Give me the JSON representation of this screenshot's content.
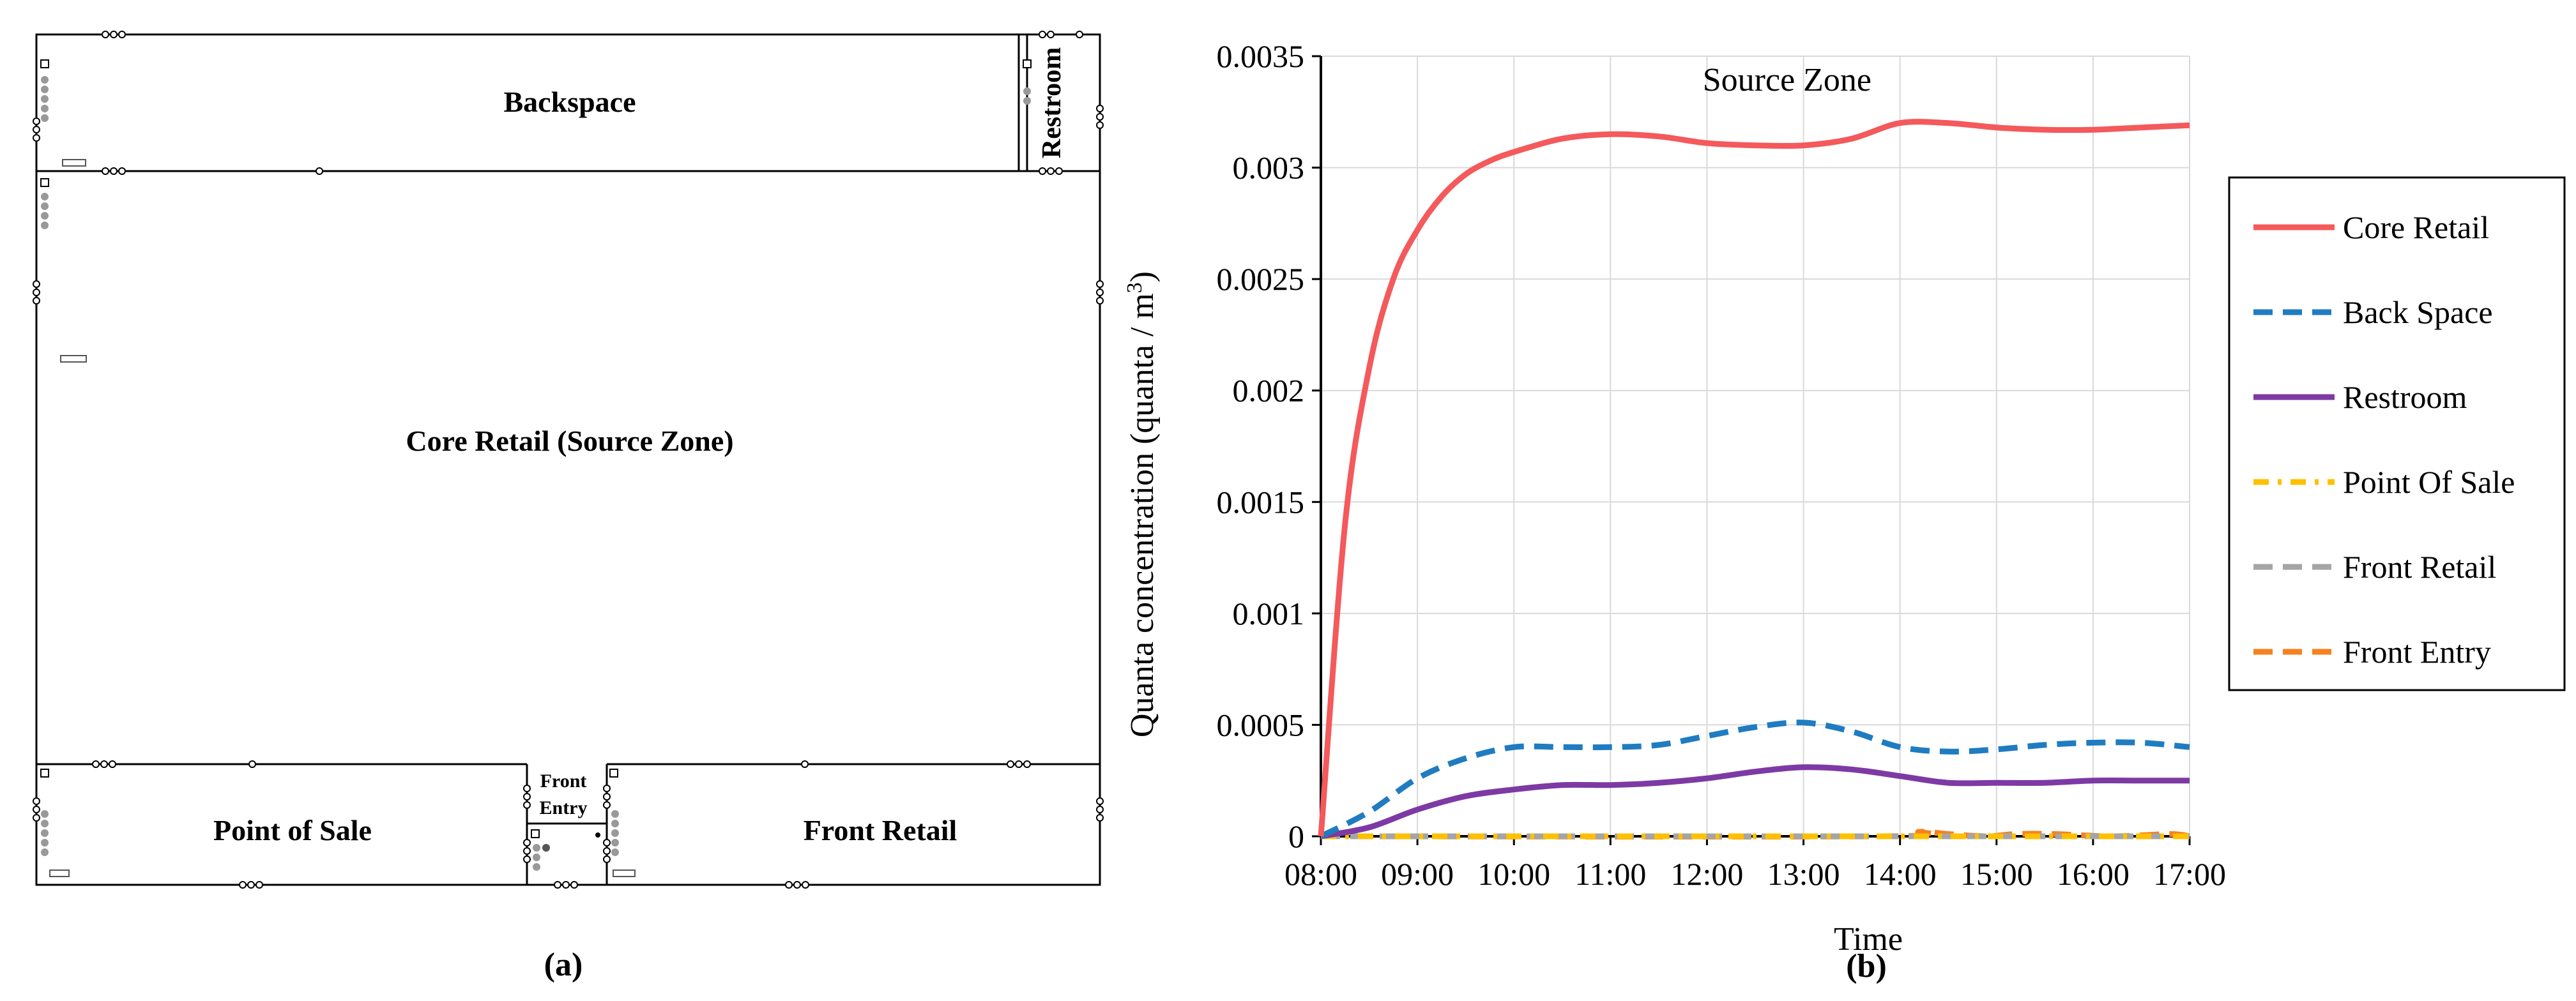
{
  "floor_plan": {
    "caption": "(a)",
    "rooms": {
      "backspace": "Backspace",
      "restroom": "Restroom",
      "core_retail": "Core Retail (Source Zone)",
      "point_of_sale": "Point of Sale",
      "front_entry_line1": "Front",
      "front_entry_line2": "Entry",
      "front_retail": "Front Retail"
    }
  },
  "chart_data": {
    "type": "line",
    "caption": "(b)",
    "annotation": "Source Zone",
    "xlabel": "Time",
    "ylabel_main": "Quanta concentration (quanta / m",
    "ylabel_sup": "3",
    "ylabel_tail": ")",
    "xlim": [
      8,
      17
    ],
    "ylim": [
      0,
      0.0035
    ],
    "x_tick_values": [
      8,
      9,
      10,
      11,
      12,
      13,
      14,
      15,
      16,
      17
    ],
    "x_tick_labels": [
      "08:00",
      "09:00",
      "10:00",
      "11:00",
      "12:00",
      "13:00",
      "14:00",
      "15:00",
      "16:00",
      "17:00"
    ],
    "y_tick_values": [
      0,
      0.0005,
      0.001,
      0.0015,
      0.002,
      0.0025,
      0.003,
      0.0035
    ],
    "y_tick_labels": [
      "0",
      "0.0005",
      "0.001",
      "0.0015",
      "0.002",
      "0.0025",
      "0.003",
      "0.0035"
    ],
    "grid": true,
    "legend_position": "right",
    "series": [
      {
        "name": "Core Retail",
        "color": "#f4595b",
        "style": "solid",
        "x": [
          8,
          8.25,
          8.5,
          8.75,
          9,
          9.25,
          9.5,
          9.75,
          10,
          10.5,
          11,
          11.5,
          12,
          12.5,
          13,
          13.5,
          14,
          14.5,
          15,
          15.5,
          16,
          16.5,
          17
        ],
        "y": [
          0,
          0.0014,
          0.0021,
          0.0025,
          0.00272,
          0.00287,
          0.00297,
          0.00303,
          0.00307,
          0.00313,
          0.00315,
          0.00314,
          0.00311,
          0.0031,
          0.0031,
          0.00313,
          0.0032,
          0.0032,
          0.00318,
          0.00317,
          0.00317,
          0.00318,
          0.00319
        ]
      },
      {
        "name": "Back Space",
        "color": "#1f7cc1",
        "style": "dashed",
        "x": [
          8,
          8.5,
          9,
          9.5,
          10,
          10.5,
          11,
          11.5,
          12,
          12.5,
          13,
          13.5,
          14,
          14.5,
          15,
          15.5,
          16,
          16.5,
          17
        ],
        "y": [
          0,
          0.00011,
          0.00026,
          0.00035,
          0.0004,
          0.0004,
          0.0004,
          0.00041,
          0.00045,
          0.00049,
          0.00051,
          0.00047,
          0.0004,
          0.00038,
          0.00039,
          0.00041,
          0.00042,
          0.00042,
          0.0004
        ]
      },
      {
        "name": "Restroom",
        "color": "#7d3aa4",
        "style": "solid",
        "x": [
          8,
          8.5,
          9,
          9.5,
          10,
          10.5,
          11,
          11.5,
          12,
          12.5,
          13,
          13.5,
          14,
          14.5,
          15,
          15.5,
          16,
          16.5,
          17
        ],
        "y": [
          0,
          4e-05,
          0.00012,
          0.00018,
          0.00021,
          0.00023,
          0.00023,
          0.00024,
          0.00026,
          0.00029,
          0.00031,
          0.0003,
          0.00027,
          0.00024,
          0.00024,
          0.00024,
          0.00025,
          0.00025,
          0.00025
        ]
      },
      {
        "name": "Point Of Sale",
        "color": "#ffc000",
        "style": "dashdot",
        "x": [
          8,
          17
        ],
        "y": [
          0,
          0
        ]
      },
      {
        "name": "Front Retail",
        "color": "#a5a5a5",
        "style": "dashed",
        "x": [
          8,
          17
        ],
        "y": [
          0,
          0
        ]
      },
      {
        "name": "Front Entry",
        "color": "#f7811e",
        "style": "dashed",
        "x": [
          8,
          13.8,
          14.2,
          14.5,
          14.9,
          15.2,
          15.6,
          16.2,
          16.8,
          17
        ],
        "y": [
          0,
          0,
          2e-05,
          1e-05,
          0,
          1e-05,
          1e-05,
          0,
          1e-05,
          0
        ]
      }
    ]
  }
}
